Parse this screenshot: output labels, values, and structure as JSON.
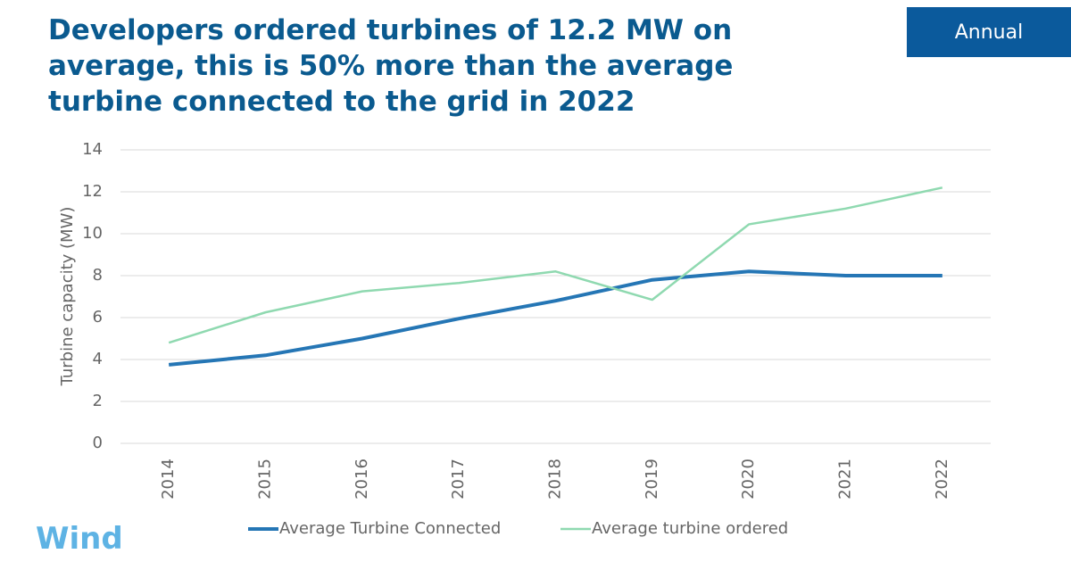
{
  "chart_data": {
    "type": "line",
    "title": "Developers ordered turbines of 12.2 MW on average, this is 50% more than the average turbine connected to the grid in 2022",
    "button": "Annual",
    "logo": "Wind",
    "y_label": "Turbine capacity (MW)",
    "categories": [
      "2014",
      "2015",
      "2016",
      "2017",
      "2018",
      "2019",
      "2020",
      "2021",
      "2022"
    ],
    "series": [
      {
        "name": "Average Turbine Connected",
        "color": "#2576b5",
        "values": [
          3.75,
          4.2,
          5.0,
          5.95,
          6.8,
          7.8,
          8.2,
          8.0,
          8.0
        ]
      },
      {
        "name": "Average turbine ordered",
        "color": "#8fd9b0",
        "values": [
          4.8,
          6.25,
          7.25,
          7.65,
          8.2,
          6.85,
          10.45,
          11.2,
          12.2
        ]
      }
    ],
    "ylim": [
      0,
      14
    ],
    "yticks": [
      0,
      2,
      4,
      6,
      8,
      10,
      12,
      14
    ],
    "grid": true
  }
}
